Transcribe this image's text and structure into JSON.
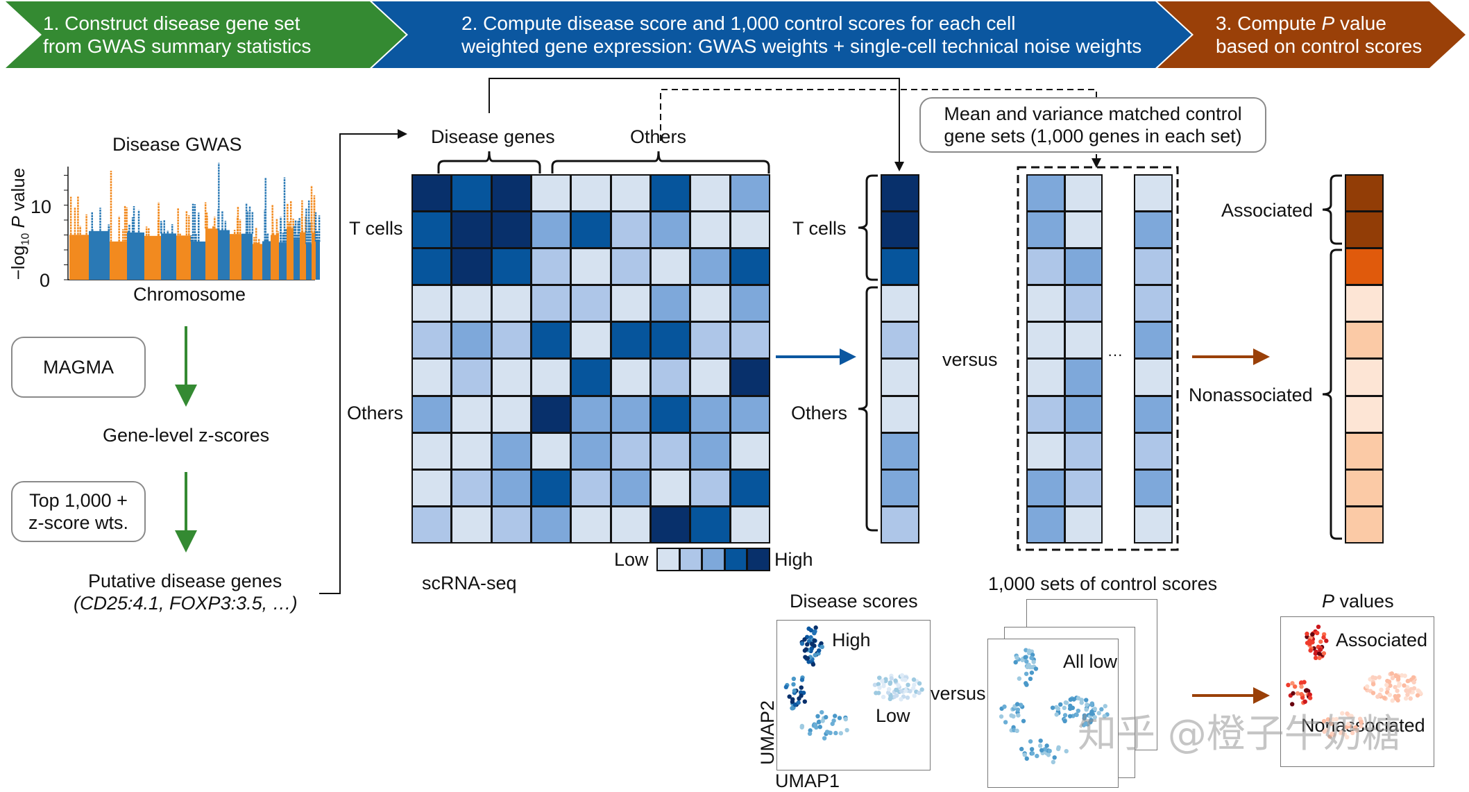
{
  "banner": {
    "step1": "1. Construct disease gene set\nfrom GWAS summary statistics",
    "step2": "2. Compute disease score and 1,000 control scores for each cell\nweighted gene expression: GWAS weights + single-cell technical noise weights",
    "step3_prefix": "3. Compute ",
    "step3_italic": "P",
    "step3_suffix": " value",
    "step3_line2": "based on control scores",
    "colors": {
      "step1": "#348a32",
      "step2": "#0b57a0",
      "step3": "#9a4008"
    }
  },
  "gwas": {
    "title": "Disease GWAS",
    "ylabel_prefix": "−log",
    "ylabel_sub": "10",
    "ylabel_italic": "P",
    "ylabel_suffix": " value",
    "xlabel": "Chromosome",
    "yticks": [
      "0",
      "10"
    ],
    "colors": [
      "#f28a1f",
      "#2a79b5"
    ]
  },
  "steps": {
    "magma": "MAGMA",
    "gene_z": "Gene-level z-scores",
    "top": "Top 1,000 +\nz-score wts.",
    "putative": "Putative disease genes",
    "putative_examples": "(CD25:4.1, FOXP3:3.5, …)"
  },
  "heatmap": {
    "col_groups": [
      "Disease genes",
      "Others"
    ],
    "row_groups": [
      "T cells",
      "Others"
    ],
    "caption": "scRNA-seq",
    "legend_low": "Low",
    "legend_high": "High",
    "palette": [
      "#d6e2f0",
      "#aec6e8",
      "#7ea8da",
      "#06559c",
      "#08306b"
    ],
    "values": [
      [
        5,
        4,
        5,
        1,
        1,
        1,
        4,
        1,
        3
      ],
      [
        4,
        5,
        5,
        3,
        4,
        2,
        3,
        1,
        1
      ],
      [
        4,
        5,
        4,
        2,
        1,
        2,
        1,
        3,
        4
      ],
      [
        1,
        1,
        1,
        2,
        2,
        1,
        3,
        1,
        3
      ],
      [
        2,
        3,
        2,
        4,
        1,
        4,
        4,
        2,
        2
      ],
      [
        1,
        2,
        1,
        1,
        4,
        1,
        2,
        1,
        5
      ],
      [
        3,
        1,
        1,
        5,
        3,
        3,
        4,
        3,
        3
      ],
      [
        1,
        1,
        3,
        1,
        3,
        2,
        2,
        3,
        1
      ],
      [
        1,
        2,
        3,
        4,
        2,
        3,
        1,
        2,
        4
      ],
      [
        2,
        1,
        2,
        3,
        1,
        1,
        5,
        4,
        1
      ]
    ]
  },
  "disease_score": {
    "row_groups": [
      "T cells",
      "Others"
    ],
    "values": [
      5,
      5,
      4,
      1,
      2,
      1,
      1,
      3,
      3,
      2
    ]
  },
  "control": {
    "callout": "Mean and variance matched control\ngene sets (1,000 genes in each set)",
    "versus": "versus",
    "ellipsis": "···",
    "columns": [
      [
        3,
        3,
        2,
        1,
        1,
        1,
        2,
        1,
        3,
        3
      ],
      [
        1,
        1,
        3,
        2,
        1,
        3,
        3,
        2,
        2,
        1
      ],
      [
        1,
        3,
        2,
        2,
        3,
        1,
        3,
        2,
        3,
        1
      ]
    ]
  },
  "pvalue": {
    "row_groups": [
      "Associated",
      "Nonassociated"
    ],
    "palette": [
      "#fde5d5",
      "#fbcaa6",
      "#fb9a62",
      "#e05a0c",
      "#923d06"
    ],
    "values": [
      5,
      5,
      4,
      1,
      2,
      1,
      1,
      2,
      2,
      2
    ]
  },
  "umap": {
    "disease_title": "Disease scores",
    "high": "High",
    "low": "Low",
    "xlabel": "UMAP1",
    "ylabel": "UMAP2",
    "versus": "versus",
    "control_title": "1,000 sets of control scores",
    "all_low": "All low",
    "p_title_italic": "P",
    "p_title_suffix": " values",
    "associated": "Associated",
    "nonassociated": "Nonassociated"
  },
  "watermark": "知乎 @橙子牛奶糖"
}
